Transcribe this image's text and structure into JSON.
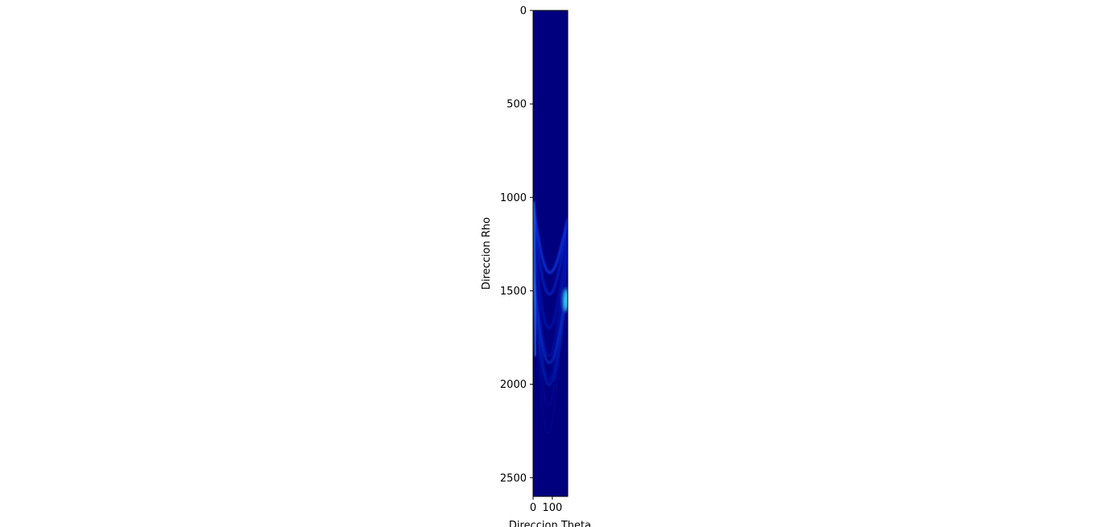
{
  "chart_data": {
    "type": "heatmap",
    "title": "",
    "xlabel": "Direccion Theta",
    "ylabel": "Direccion Rho",
    "xlim": [
      0,
      180
    ],
    "ylim": [
      2600,
      0
    ],
    "x_ticks": [
      0,
      100
    ],
    "y_ticks": [
      0,
      500,
      1000,
      1500,
      2000,
      2500
    ],
    "colormap": "jet",
    "background_color": "#00007f",
    "grid": false,
    "legend": "none",
    "hot_spot": {
      "theta": 180,
      "rho": 1550
    }
  }
}
